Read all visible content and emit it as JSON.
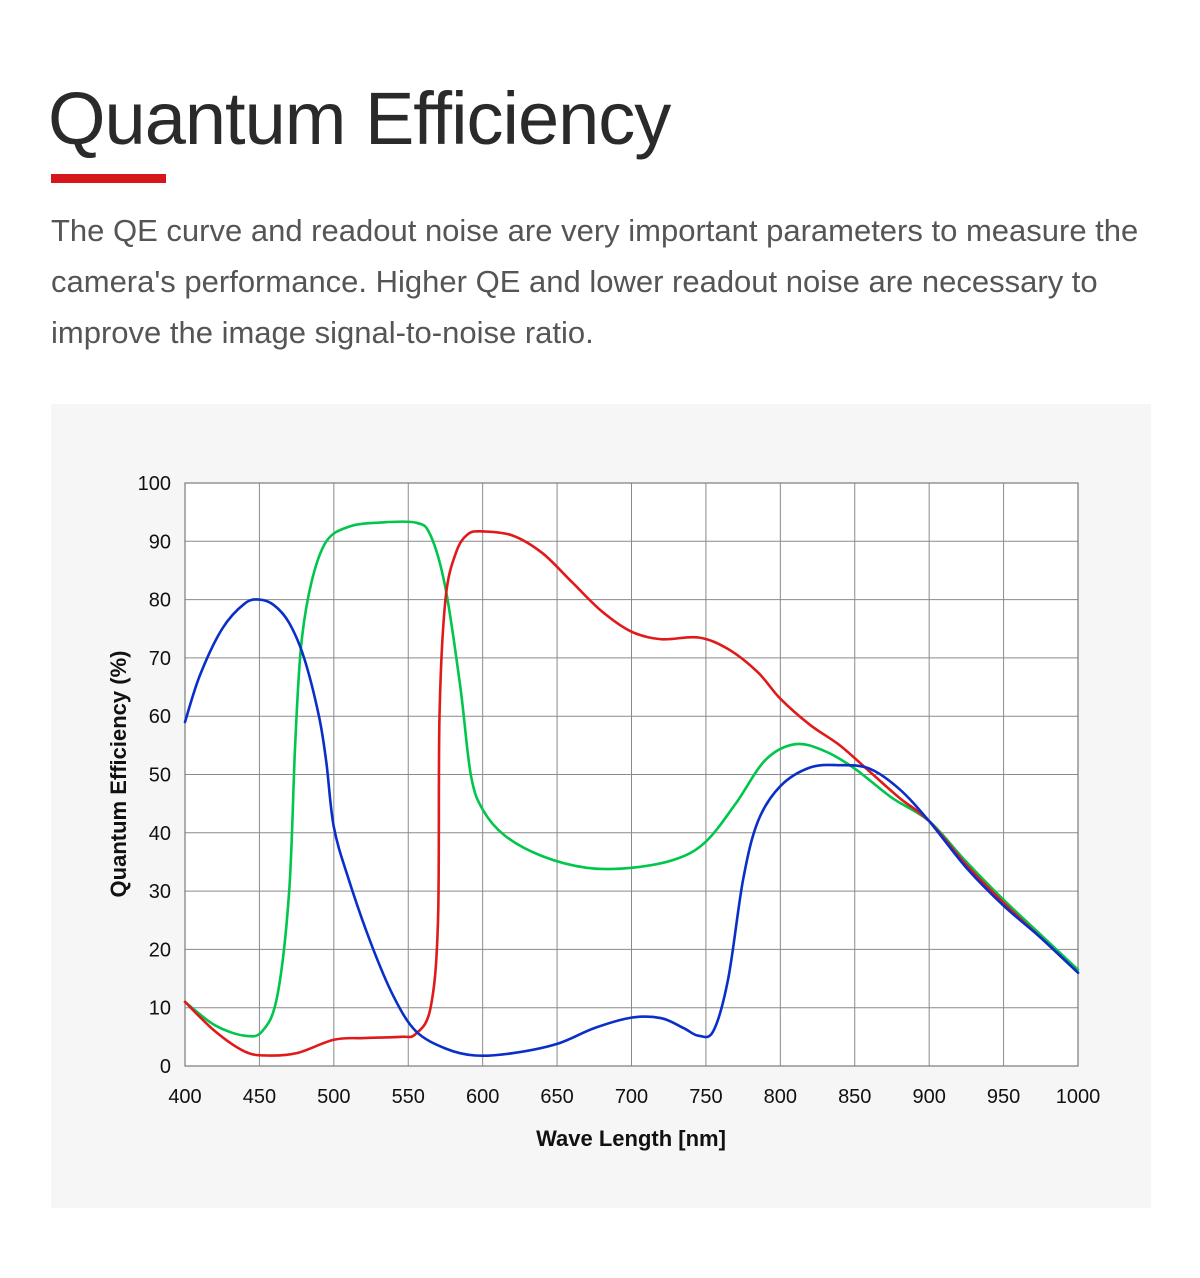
{
  "header": {
    "title": "Quantum Efficiency",
    "accent_color": "#d7161c"
  },
  "description": "The QE curve and readout noise are very important parameters to measure the camera's performance. Higher QE and lower readout noise are necessary to improve the image signal-to-noise ratio.",
  "chart_data": {
    "type": "line",
    "title": "",
    "xlabel": "Wave Length [nm]",
    "ylabel": "Quantum Efficiency (%)",
    "xlim": [
      400,
      1000
    ],
    "ylim": [
      0,
      100
    ],
    "x_ticks": [
      400,
      450,
      500,
      550,
      600,
      650,
      700,
      750,
      800,
      850,
      900,
      950,
      1000
    ],
    "y_ticks": [
      0,
      10,
      20,
      30,
      40,
      50,
      60,
      70,
      80,
      90,
      100
    ],
    "grid": true,
    "legend": "none",
    "series": [
      {
        "color": "#00c64c",
        "points": [
          [
            400,
            11
          ],
          [
            420,
            7
          ],
          [
            440,
            5.2
          ],
          [
            452,
            6
          ],
          [
            462,
            12
          ],
          [
            470,
            30
          ],
          [
            474,
            55
          ],
          [
            478,
            72
          ],
          [
            485,
            83
          ],
          [
            495,
            90
          ],
          [
            510,
            92.5
          ],
          [
            530,
            93.2
          ],
          [
            555,
            93.2
          ],
          [
            565,
            91
          ],
          [
            575,
            82
          ],
          [
            585,
            65
          ],
          [
            592,
            50
          ],
          [
            600,
            44
          ],
          [
            615,
            39.5
          ],
          [
            640,
            36
          ],
          [
            670,
            34
          ],
          [
            700,
            34
          ],
          [
            730,
            35.5
          ],
          [
            750,
            38.5
          ],
          [
            770,
            45
          ],
          [
            790,
            52.5
          ],
          [
            810,
            55.2
          ],
          [
            830,
            54
          ],
          [
            850,
            51
          ],
          [
            875,
            46
          ],
          [
            900,
            42
          ],
          [
            925,
            35
          ],
          [
            950,
            28.5
          ],
          [
            975,
            22.5
          ],
          [
            1000,
            16.5
          ]
        ]
      },
      {
        "color": "#e01a1a",
        "points": [
          [
            400,
            11
          ],
          [
            420,
            6
          ],
          [
            440,
            2.5
          ],
          [
            455,
            1.8
          ],
          [
            475,
            2.2
          ],
          [
            500,
            4.5
          ],
          [
            520,
            4.8
          ],
          [
            545,
            5
          ],
          [
            555,
            5.5
          ],
          [
            565,
            10
          ],
          [
            570,
            25
          ],
          [
            571,
            60
          ],
          [
            575,
            80
          ],
          [
            582,
            88
          ],
          [
            590,
            91.2
          ],
          [
            600,
            91.7
          ],
          [
            620,
            91
          ],
          [
            640,
            88
          ],
          [
            660,
            83
          ],
          [
            680,
            78
          ],
          [
            700,
            74.5
          ],
          [
            720,
            73.2
          ],
          [
            745,
            73.5
          ],
          [
            765,
            71.5
          ],
          [
            785,
            67.5
          ],
          [
            800,
            63
          ],
          [
            820,
            58.5
          ],
          [
            840,
            55
          ],
          [
            860,
            50.5
          ],
          [
            880,
            46
          ],
          [
            900,
            42
          ],
          [
            925,
            34.5
          ],
          [
            950,
            28
          ],
          [
            975,
            22
          ],
          [
            1000,
            16
          ]
        ]
      },
      {
        "color": "#0a2fc9",
        "points": [
          [
            400,
            59
          ],
          [
            410,
            67
          ],
          [
            425,
            75
          ],
          [
            440,
            79.3
          ],
          [
            450,
            80
          ],
          [
            460,
            79
          ],
          [
            470,
            76
          ],
          [
            480,
            70
          ],
          [
            490,
            60
          ],
          [
            495,
            52
          ],
          [
            500,
            41
          ],
          [
            510,
            32
          ],
          [
            525,
            21
          ],
          [
            540,
            12
          ],
          [
            555,
            6
          ],
          [
            575,
            3
          ],
          [
            595,
            1.8
          ],
          [
            620,
            2.2
          ],
          [
            650,
            3.8
          ],
          [
            675,
            6.5
          ],
          [
            700,
            8.3
          ],
          [
            720,
            8.2
          ],
          [
            735,
            6.5
          ],
          [
            745,
            5.2
          ],
          [
            755,
            6
          ],
          [
            765,
            15
          ],
          [
            775,
            32
          ],
          [
            785,
            42
          ],
          [
            800,
            48
          ],
          [
            820,
            51.2
          ],
          [
            840,
            51.6
          ],
          [
            860,
            51
          ],
          [
            880,
            47.5
          ],
          [
            900,
            42
          ],
          [
            925,
            34
          ],
          [
            950,
            27.5
          ],
          [
            975,
            22
          ],
          [
            1000,
            16
          ]
        ]
      }
    ]
  }
}
